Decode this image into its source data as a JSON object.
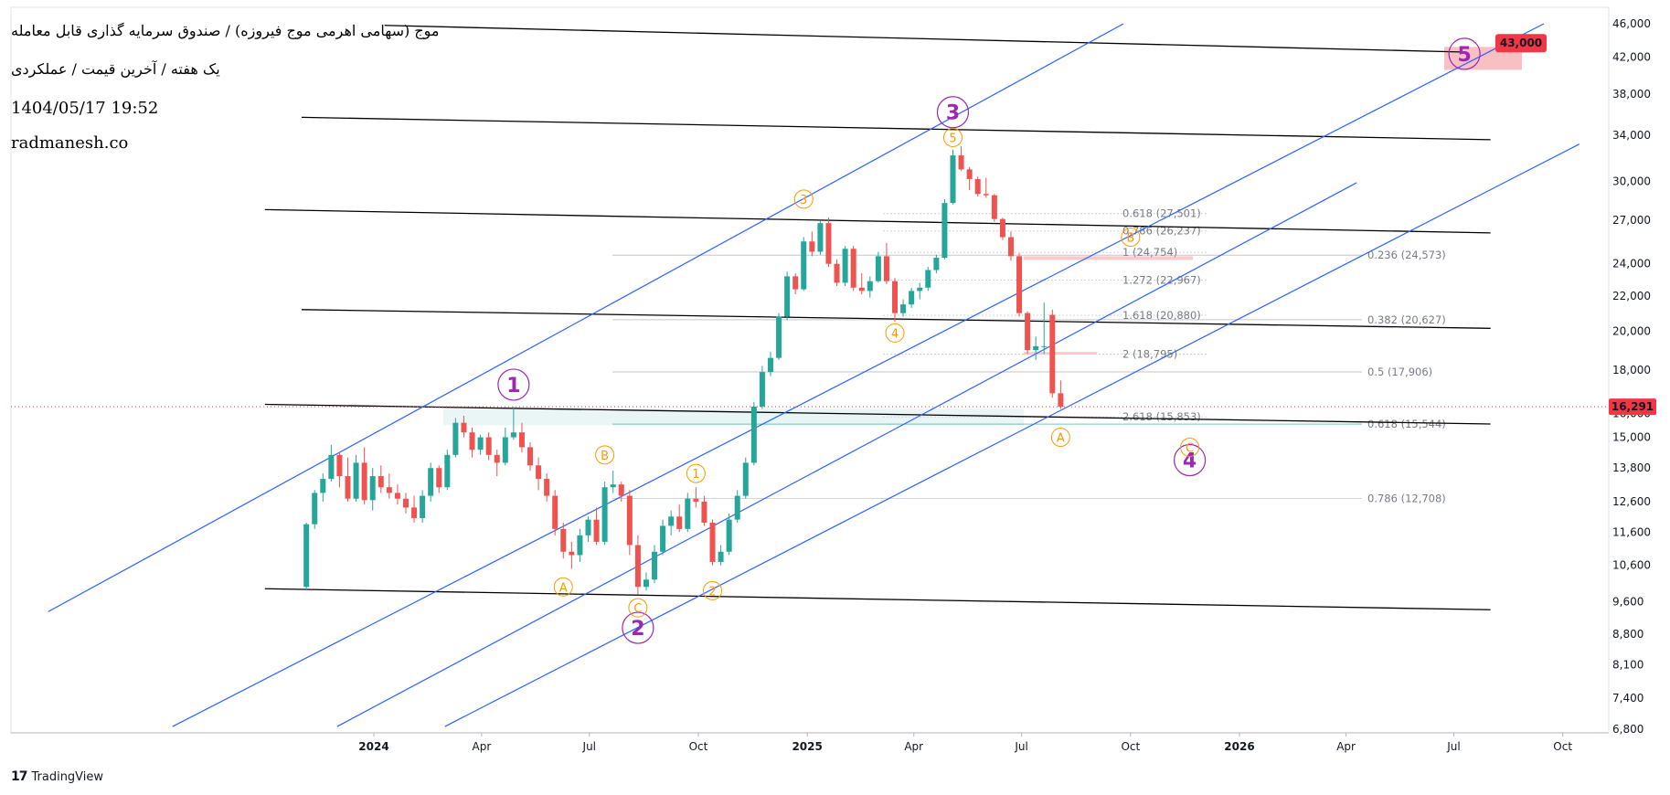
{
  "header": {
    "title": "موج (سهامی اهرمی موج فیروزه) / صندوق سرمایه گذاری قابل معامله",
    "subtitle": "یک هفته / آخرین قیمت / عملکردی",
    "datetime": "1404/05/17 19:52",
    "website": "radmanesh.co"
  },
  "footer": {
    "brand": "TradingView"
  },
  "chart_data": {
    "type": "candlestick",
    "interval": "1 week",
    "y_scale": "log",
    "ylim": [
      6800,
      46000
    ],
    "y_ticks": [
      "46,000",
      "42,000",
      "38,000",
      "34,000",
      "30,000",
      "27,000",
      "24,000",
      "22,000",
      "20,000",
      "18,000",
      "16,000",
      "15,000",
      "13,800",
      "12,600",
      "11,600",
      "10,600",
      "9,600",
      "8,800",
      "8,100",
      "7,400",
      "6,800"
    ],
    "x_ticks": [
      {
        "label": "2024",
        "x": "2024-01"
      },
      {
        "label": "Apr",
        "x": "2024-04"
      },
      {
        "label": "Jul",
        "x": "2024-07"
      },
      {
        "label": "Oct",
        "x": "2024-10"
      },
      {
        "label": "2025",
        "x": "2025-01"
      },
      {
        "label": "Apr",
        "x": "2025-04"
      },
      {
        "label": "Jul",
        "x": "2025-07"
      },
      {
        "label": "Oct",
        "x": "2025-10"
      },
      {
        "label": "2026",
        "x": "2026-01"
      },
      {
        "label": "Apr",
        "x": "2026-04"
      },
      {
        "label": "Jul",
        "x": "2026-07"
      },
      {
        "label": "Oct",
        "x": "2026-10"
      }
    ],
    "last_price": {
      "value": 16291,
      "label": "16,291",
      "color": "#f23645"
    },
    "target": {
      "value": 43000,
      "label": "43,000",
      "color": "#f23645"
    },
    "colors": {
      "up": "#26a69a",
      "down": "#ef5350",
      "channel": "#2962ff",
      "trend": "#000000",
      "wave_major": "#9c27b0",
      "wave_minor": "#ff9800"
    },
    "candles": [
      {
        "t": "2023-11-05",
        "o": 10000,
        "h": 11900,
        "l": 9900,
        "c": 11850
      },
      {
        "t": "2023-11-12",
        "o": 11850,
        "h": 13000,
        "l": 11700,
        "c": 12900
      },
      {
        "t": "2023-11-19",
        "o": 12900,
        "h": 13600,
        "l": 12600,
        "c": 13400
      },
      {
        "t": "2023-11-26",
        "o": 13400,
        "h": 14700,
        "l": 13300,
        "c": 14300
      },
      {
        "t": "2023-12-03",
        "o": 14300,
        "h": 14400,
        "l": 13100,
        "c": 13500
      },
      {
        "t": "2023-12-10",
        "o": 13500,
        "h": 14200,
        "l": 12600,
        "c": 12700
      },
      {
        "t": "2023-12-17",
        "o": 12700,
        "h": 14300,
        "l": 12600,
        "c": 14000
      },
      {
        "t": "2023-12-24",
        "o": 14000,
        "h": 14600,
        "l": 12500,
        "c": 12650
      },
      {
        "t": "2023-12-31",
        "o": 12650,
        "h": 13800,
        "l": 12300,
        "c": 13500
      },
      {
        "t": "2024-01-07",
        "o": 13500,
        "h": 13900,
        "l": 12900,
        "c": 13100
      },
      {
        "t": "2024-01-14",
        "o": 13100,
        "h": 13600,
        "l": 12700,
        "c": 12900
      },
      {
        "t": "2024-01-21",
        "o": 12900,
        "h": 13200,
        "l": 12500,
        "c": 12700
      },
      {
        "t": "2024-01-28",
        "o": 12700,
        "h": 12900,
        "l": 12200,
        "c": 12400
      },
      {
        "t": "2024-02-04",
        "o": 12400,
        "h": 12800,
        "l": 11900,
        "c": 12050
      },
      {
        "t": "2024-02-11",
        "o": 12050,
        "h": 13000,
        "l": 11900,
        "c": 12800
      },
      {
        "t": "2024-02-18",
        "o": 12800,
        "h": 14000,
        "l": 12600,
        "c": 13800
      },
      {
        "t": "2024-02-25",
        "o": 13800,
        "h": 13900,
        "l": 12900,
        "c": 13100
      },
      {
        "t": "2024-03-03",
        "o": 13100,
        "h": 14500,
        "l": 13000,
        "c": 14300
      },
      {
        "t": "2024-03-10",
        "o": 14300,
        "h": 15800,
        "l": 14200,
        "c": 15600
      },
      {
        "t": "2024-03-17",
        "o": 15600,
        "h": 15900,
        "l": 15000,
        "c": 15200
      },
      {
        "t": "2024-03-24",
        "o": 15200,
        "h": 15400,
        "l": 14200,
        "c": 14500
      },
      {
        "t": "2024-03-31",
        "o": 14500,
        "h": 15100,
        "l": 14300,
        "c": 15000
      },
      {
        "t": "2024-04-07",
        "o": 15000,
        "h": 15200,
        "l": 14100,
        "c": 14300
      },
      {
        "t": "2024-04-14",
        "o": 14300,
        "h": 14500,
        "l": 13500,
        "c": 14000
      },
      {
        "t": "2024-04-21",
        "o": 14000,
        "h": 15400,
        "l": 13900,
        "c": 15000
      },
      {
        "t": "2024-04-28",
        "o": 15000,
        "h": 16300,
        "l": 14900,
        "c": 15200
      },
      {
        "t": "2024-05-05",
        "o": 15200,
        "h": 15600,
        "l": 14400,
        "c": 14600
      },
      {
        "t": "2024-05-12",
        "o": 14600,
        "h": 14800,
        "l": 13700,
        "c": 13900
      },
      {
        "t": "2024-05-19",
        "o": 13900,
        "h": 14200,
        "l": 13000,
        "c": 13400
      },
      {
        "t": "2024-05-26",
        "o": 13400,
        "h": 13600,
        "l": 12600,
        "c": 12800
      },
      {
        "t": "2024-06-02",
        "o": 12800,
        "h": 13000,
        "l": 11500,
        "c": 11700
      },
      {
        "t": "2024-06-09",
        "o": 11700,
        "h": 11900,
        "l": 10800,
        "c": 11000
      },
      {
        "t": "2024-06-16",
        "o": 11000,
        "h": 11300,
        "l": 10500,
        "c": 10900
      },
      {
        "t": "2024-06-23",
        "o": 10900,
        "h": 11700,
        "l": 10700,
        "c": 11500
      },
      {
        "t": "2024-06-30",
        "o": 11500,
        "h": 12100,
        "l": 11300,
        "c": 12000
      },
      {
        "t": "2024-07-07",
        "o": 12000,
        "h": 12400,
        "l": 11200,
        "c": 11300
      },
      {
        "t": "2024-07-14",
        "o": 11300,
        "h": 13300,
        "l": 11200,
        "c": 13100
      },
      {
        "t": "2024-07-21",
        "o": 13100,
        "h": 13700,
        "l": 12900,
        "c": 13200
      },
      {
        "t": "2024-07-28",
        "o": 13200,
        "h": 13300,
        "l": 12600,
        "c": 12800
      },
      {
        "t": "2024-08-04",
        "o": 12800,
        "h": 13000,
        "l": 10900,
        "c": 11200
      },
      {
        "t": "2024-08-11",
        "o": 11200,
        "h": 11500,
        "l": 9800,
        "c": 10000
      },
      {
        "t": "2024-08-18",
        "o": 10000,
        "h": 10400,
        "l": 9900,
        "c": 10200
      },
      {
        "t": "2024-08-25",
        "o": 10200,
        "h": 11200,
        "l": 10100,
        "c": 11000
      },
      {
        "t": "2024-09-01",
        "o": 11000,
        "h": 12000,
        "l": 10900,
        "c": 11800
      },
      {
        "t": "2024-09-08",
        "o": 11800,
        "h": 12300,
        "l": 11500,
        "c": 12100
      },
      {
        "t": "2024-09-15",
        "o": 12100,
        "h": 12500,
        "l": 11600,
        "c": 11700
      },
      {
        "t": "2024-09-22",
        "o": 11700,
        "h": 12900,
        "l": 11600,
        "c": 12700
      },
      {
        "t": "2024-09-29",
        "o": 12700,
        "h": 13100,
        "l": 12400,
        "c": 12600
      },
      {
        "t": "2024-10-06",
        "o": 12600,
        "h": 12800,
        "l": 11800,
        "c": 11900
      },
      {
        "t": "2024-10-13",
        "o": 11900,
        "h": 12000,
        "l": 10600,
        "c": 10700
      },
      {
        "t": "2024-10-20",
        "o": 10700,
        "h": 11200,
        "l": 10600,
        "c": 11000
      },
      {
        "t": "2024-10-27",
        "o": 11000,
        "h": 12200,
        "l": 10900,
        "c": 12000
      },
      {
        "t": "2024-11-03",
        "o": 12000,
        "h": 13000,
        "l": 11900,
        "c": 12800
      },
      {
        "t": "2024-11-10",
        "o": 12800,
        "h": 14200,
        "l": 12700,
        "c": 14000
      },
      {
        "t": "2024-11-17",
        "o": 14000,
        "h": 16500,
        "l": 13900,
        "c": 16300
      },
      {
        "t": "2024-11-24",
        "o": 16300,
        "h": 18200,
        "l": 16200,
        "c": 17900
      },
      {
        "t": "2024-12-01",
        "o": 17900,
        "h": 18900,
        "l": 17700,
        "c": 18600
      },
      {
        "t": "2024-12-08",
        "o": 18600,
        "h": 21000,
        "l": 18500,
        "c": 20800
      },
      {
        "t": "2024-12-15",
        "o": 20800,
        "h": 23500,
        "l": 20600,
        "c": 23200
      },
      {
        "t": "2024-12-22",
        "o": 23200,
        "h": 23400,
        "l": 22100,
        "c": 22400
      },
      {
        "t": "2024-12-29",
        "o": 22400,
        "h": 25800,
        "l": 22300,
        "c": 25500
      },
      {
        "t": "2025-01-05",
        "o": 25500,
        "h": 26200,
        "l": 24500,
        "c": 24800
      },
      {
        "t": "2025-01-12",
        "o": 24800,
        "h": 27000,
        "l": 24600,
        "c": 26800
      },
      {
        "t": "2025-01-19",
        "o": 26800,
        "h": 27200,
        "l": 23800,
        "c": 24000
      },
      {
        "t": "2025-01-26",
        "o": 24000,
        "h": 24300,
        "l": 22600,
        "c": 22800
      },
      {
        "t": "2025-02-02",
        "o": 22800,
        "h": 25200,
        "l": 22600,
        "c": 25000
      },
      {
        "t": "2025-02-09",
        "o": 25000,
        "h": 25200,
        "l": 22300,
        "c": 22500
      },
      {
        "t": "2025-02-16",
        "o": 22500,
        "h": 23400,
        "l": 22100,
        "c": 22300
      },
      {
        "t": "2025-02-23",
        "o": 22300,
        "h": 23200,
        "l": 21900,
        "c": 22900
      },
      {
        "t": "2025-03-02",
        "o": 22900,
        "h": 24800,
        "l": 22800,
        "c": 24500
      },
      {
        "t": "2025-03-09",
        "o": 24500,
        "h": 25400,
        "l": 22700,
        "c": 22900
      },
      {
        "t": "2025-03-16",
        "o": 22900,
        "h": 23100,
        "l": 20500,
        "c": 21000
      },
      {
        "t": "2025-03-23",
        "o": 21000,
        "h": 21800,
        "l": 20800,
        "c": 21500
      },
      {
        "t": "2025-03-30",
        "o": 21500,
        "h": 22500,
        "l": 21300,
        "c": 22300
      },
      {
        "t": "2025-04-06",
        "o": 22300,
        "h": 22800,
        "l": 21800,
        "c": 22500
      },
      {
        "t": "2025-04-13",
        "o": 22500,
        "h": 23800,
        "l": 22300,
        "c": 23600
      },
      {
        "t": "2025-04-20",
        "o": 23600,
        "h": 24600,
        "l": 23400,
        "c": 24400
      },
      {
        "t": "2025-04-27",
        "o": 24400,
        "h": 28600,
        "l": 24300,
        "c": 28300
      },
      {
        "t": "2025-05-04",
        "o": 28300,
        "h": 32700,
        "l": 28200,
        "c": 32200
      },
      {
        "t": "2025-05-11",
        "o": 32200,
        "h": 33000,
        "l": 30900,
        "c": 31000
      },
      {
        "t": "2025-05-18",
        "o": 31000,
        "h": 31200,
        "l": 29300,
        "c": 30200
      },
      {
        "t": "2025-05-25",
        "o": 30200,
        "h": 30400,
        "l": 28800,
        "c": 29000
      },
      {
        "t": "2025-06-01",
        "o": 29000,
        "h": 30300,
        "l": 28700,
        "c": 28900
      },
      {
        "t": "2025-06-08",
        "o": 28900,
        "h": 29000,
        "l": 26900,
        "c": 27100
      },
      {
        "t": "2025-06-15",
        "o": 27100,
        "h": 27200,
        "l": 25600,
        "c": 25800
      },
      {
        "t": "2025-06-22",
        "o": 25800,
        "h": 26200,
        "l": 24200,
        "c": 24500
      },
      {
        "t": "2025-06-29",
        "o": 24500,
        "h": 24700,
        "l": 20800,
        "c": 21000
      },
      {
        "t": "2025-07-06",
        "o": 21000,
        "h": 21100,
        "l": 18800,
        "c": 19000
      },
      {
        "t": "2025-07-13",
        "o": 19000,
        "h": 19700,
        "l": 18500,
        "c": 19200
      },
      {
        "t": "2025-07-20",
        "o": 19200,
        "h": 21600,
        "l": 18800,
        "c": 19200
      },
      {
        "t": "2025-07-27",
        "o": 20900,
        "h": 21200,
        "l": 16700,
        "c": 16900
      },
      {
        "t": "2025-08-03",
        "o": 16900,
        "h": 17500,
        "l": 16200,
        "c": 16291
      }
    ],
    "trend_lines": [
      {
        "from": [
          "2023-10-01",
          16400
        ],
        "to": [
          "2026-08-01",
          15550
        ]
      },
      {
        "from": [
          "2023-10-01",
          9950
        ],
        "to": [
          "2026-08-01",
          9400
        ]
      },
      {
        "from": [
          "2023-11-01",
          21200
        ],
        "to": [
          "2026-08-01",
          20150
        ]
      },
      {
        "from": [
          "2023-10-01",
          27800
        ],
        "to": [
          "2026-08-01",
          26100
        ]
      },
      {
        "from": [
          "2023-11-01",
          35700
        ],
        "to": [
          "2026-08-01",
          33600
        ]
      },
      {
        "from": [
          "2024-01-10",
          45800
        ],
        "to": [
          "2026-07-10",
          42600
        ]
      }
    ],
    "channel_lines": [
      {
        "from": [
          "2023-04-01",
          9350
        ],
        "to": [
          "2025-09-25",
          46000
        ]
      },
      {
        "from": [
          "2023-07-15",
          6850
        ],
        "to": [
          "2026-09-15",
          46000
        ]
      },
      {
        "from": [
          "2023-12-01",
          6850
        ],
        "to": [
          "2026-04-10",
          29900
        ]
      },
      {
        "from": [
          "2024-03-01",
          6850
        ],
        "to": [
          "2026-10-15",
          33200
        ]
      }
    ],
    "fib_levels_left": [
      {
        "label": "0.618 (27,501)",
        "value": 27501
      },
      {
        "label": "0.786 (26,237)",
        "value": 26237
      },
      {
        "label": "1 (24,754)",
        "value": 24754
      },
      {
        "label": "1.272 (22,967)",
        "value": 22967
      },
      {
        "label": "1.618 (20,880)",
        "value": 20880
      },
      {
        "label": "2 (18,795)",
        "value": 18795
      },
      {
        "label": "2.618 (15,853)",
        "value": 15853
      }
    ],
    "fib_levels_right": [
      {
        "label": "0.236 (24,573)",
        "value": 24573
      },
      {
        "label": "0.382 (20,627)",
        "value": 20627
      },
      {
        "label": "0.5 (17,906)",
        "value": 17906
      },
      {
        "label": "0.618 (15,544)",
        "value": 15544,
        "color": "#089981"
      },
      {
        "label": "0.786 (12,708)",
        "value": 12708,
        "color": "#b2b5be"
      }
    ],
    "wave_labels_major": [
      {
        "label": "1",
        "t": "2024-04-28",
        "v": 17300
      },
      {
        "label": "2",
        "t": "2024-08-11",
        "v": 8950
      },
      {
        "label": "3",
        "t": "2025-05-04",
        "v": 36200
      },
      {
        "label": "4",
        "t": "2025-11-20",
        "v": 14100
      },
      {
        "label": "5",
        "t": "2026-07-10",
        "v": 42400
      }
    ],
    "wave_labels_minor": [
      {
        "label": "A",
        "t": "2024-06-09",
        "v": 10000
      },
      {
        "label": "B",
        "t": "2024-07-14",
        "v": 14300
      },
      {
        "label": "C",
        "t": "2024-08-11",
        "v": 9450
      },
      {
        "label": "1",
        "t": "2024-09-29",
        "v": 13600
      },
      {
        "label": "2",
        "t": "2024-10-13",
        "v": 9900
      },
      {
        "label": "3",
        "t": "2024-12-29",
        "v": 28600
      },
      {
        "label": "4",
        "t": "2025-03-16",
        "v": 19900
      },
      {
        "label": "5",
        "t": "2025-05-04",
        "v": 33800
      },
      {
        "label": "A",
        "t": "2025-08-03",
        "v": 15000
      },
      {
        "label": "B",
        "t": "2025-10-01",
        "v": 25800
      },
      {
        "label": "C",
        "t": "2025-11-20",
        "v": 14600
      }
    ]
  }
}
